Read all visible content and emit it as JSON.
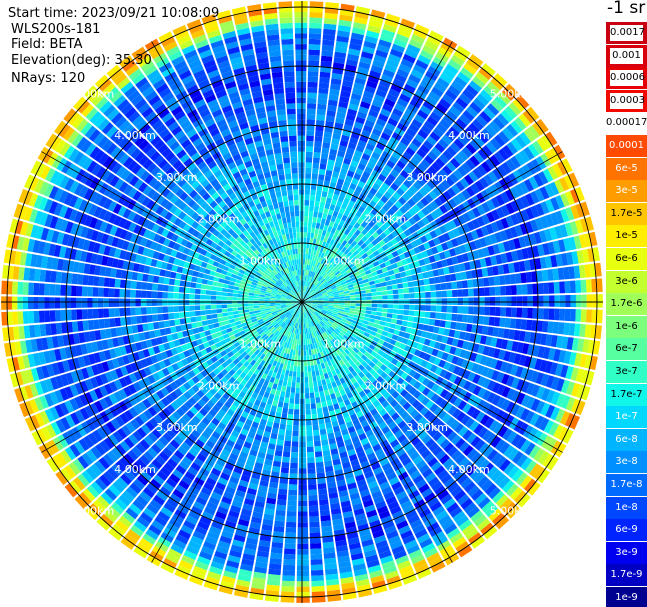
{
  "info": {
    "start_time": "Start time: 2023/09/21 10:08:09",
    "device": "WLS200s-181",
    "field": "Field: BETA",
    "elevation": "Elevation(deg): 35.30",
    "nrays": "NRays: 120"
  },
  "colorbar": {
    "unit": "-1 sr",
    "entries": [
      {
        "label": "0.0017",
        "color": "#c8000f"
      },
      {
        "label": "0.001",
        "color": "#d8000c"
      },
      {
        "label": "0.0006",
        "color": "#e60005"
      },
      {
        "label": "0.0003",
        "color": "#f20a00"
      },
      {
        "label": "0.00017",
        "color": "#ff2000"
      },
      {
        "label": "0.0001",
        "color": "#ff4a00"
      },
      {
        "label": "6e-5",
        "color": "#ff7400"
      },
      {
        "label": "3e-5",
        "color": "#ff9d00"
      },
      {
        "label": "1.7e-5",
        "color": "#ffc600"
      },
      {
        "label": "1e-5",
        "color": "#ffee00"
      },
      {
        "label": "6e-6",
        "color": "#e8ff10"
      },
      {
        "label": "3e-6",
        "color": "#c4ff30"
      },
      {
        "label": "1.7e-6",
        "color": "#a0ff58"
      },
      {
        "label": "1e-6",
        "color": "#7cff7c"
      },
      {
        "label": "6e-7",
        "color": "#58ffa0"
      },
      {
        "label": "3e-7",
        "color": "#30ffc6"
      },
      {
        "label": "1.7e-7",
        "color": "#10f6e8"
      },
      {
        "label": "1e-7",
        "color": "#00d8ff"
      },
      {
        "label": "6e-8",
        "color": "#00b4ff"
      },
      {
        "label": "3e-8",
        "color": "#0090ff"
      },
      {
        "label": "1.7e-8",
        "color": "#006cff"
      },
      {
        "label": "1e-8",
        "color": "#0048ff"
      },
      {
        "label": "6e-9",
        "color": "#0024ff"
      },
      {
        "label": "3e-9",
        "color": "#0000f0"
      },
      {
        "label": "1.7e-9",
        "color": "#0000c4"
      },
      {
        "label": "1e-9",
        "color": "#000090"
      }
    ]
  },
  "chart_data": {
    "type": "heatmap",
    "projection": "polar (PPI scan)",
    "quantity": "BETA",
    "rays": 120,
    "range_rings_km": [
      1,
      2,
      3,
      4,
      5
    ],
    "ring_labels": [
      "1.00km",
      "2.00km",
      "3.00km",
      "4.00km",
      "5.00km"
    ],
    "radial_lines_deg": [
      0,
      30,
      60,
      90,
      120,
      150,
      180,
      210,
      240,
      270,
      300,
      330
    ],
    "max_range_km": 5.1,
    "color_scale": "log",
    "value_range": [
      1e-09,
      0.0017
    ],
    "radial_profile": [
      {
        "range_km": 0.0,
        "value": 1.7e-07
      },
      {
        "range_km": 1.0,
        "value": 1.7e-07
      },
      {
        "range_km": 2.0,
        "value": 6e-08
      },
      {
        "range_km": 3.0,
        "value": 1.7e-08
      },
      {
        "range_km": 4.0,
        "value": 1e-08
      },
      {
        "range_km": 4.6,
        "value": 3e-08
      },
      {
        "range_km": 4.9,
        "value": 1e-05
      },
      {
        "range_km": 5.05,
        "value": 3e-05
      },
      {
        "range_km": 5.1,
        "value": 3e-08
      }
    ]
  }
}
